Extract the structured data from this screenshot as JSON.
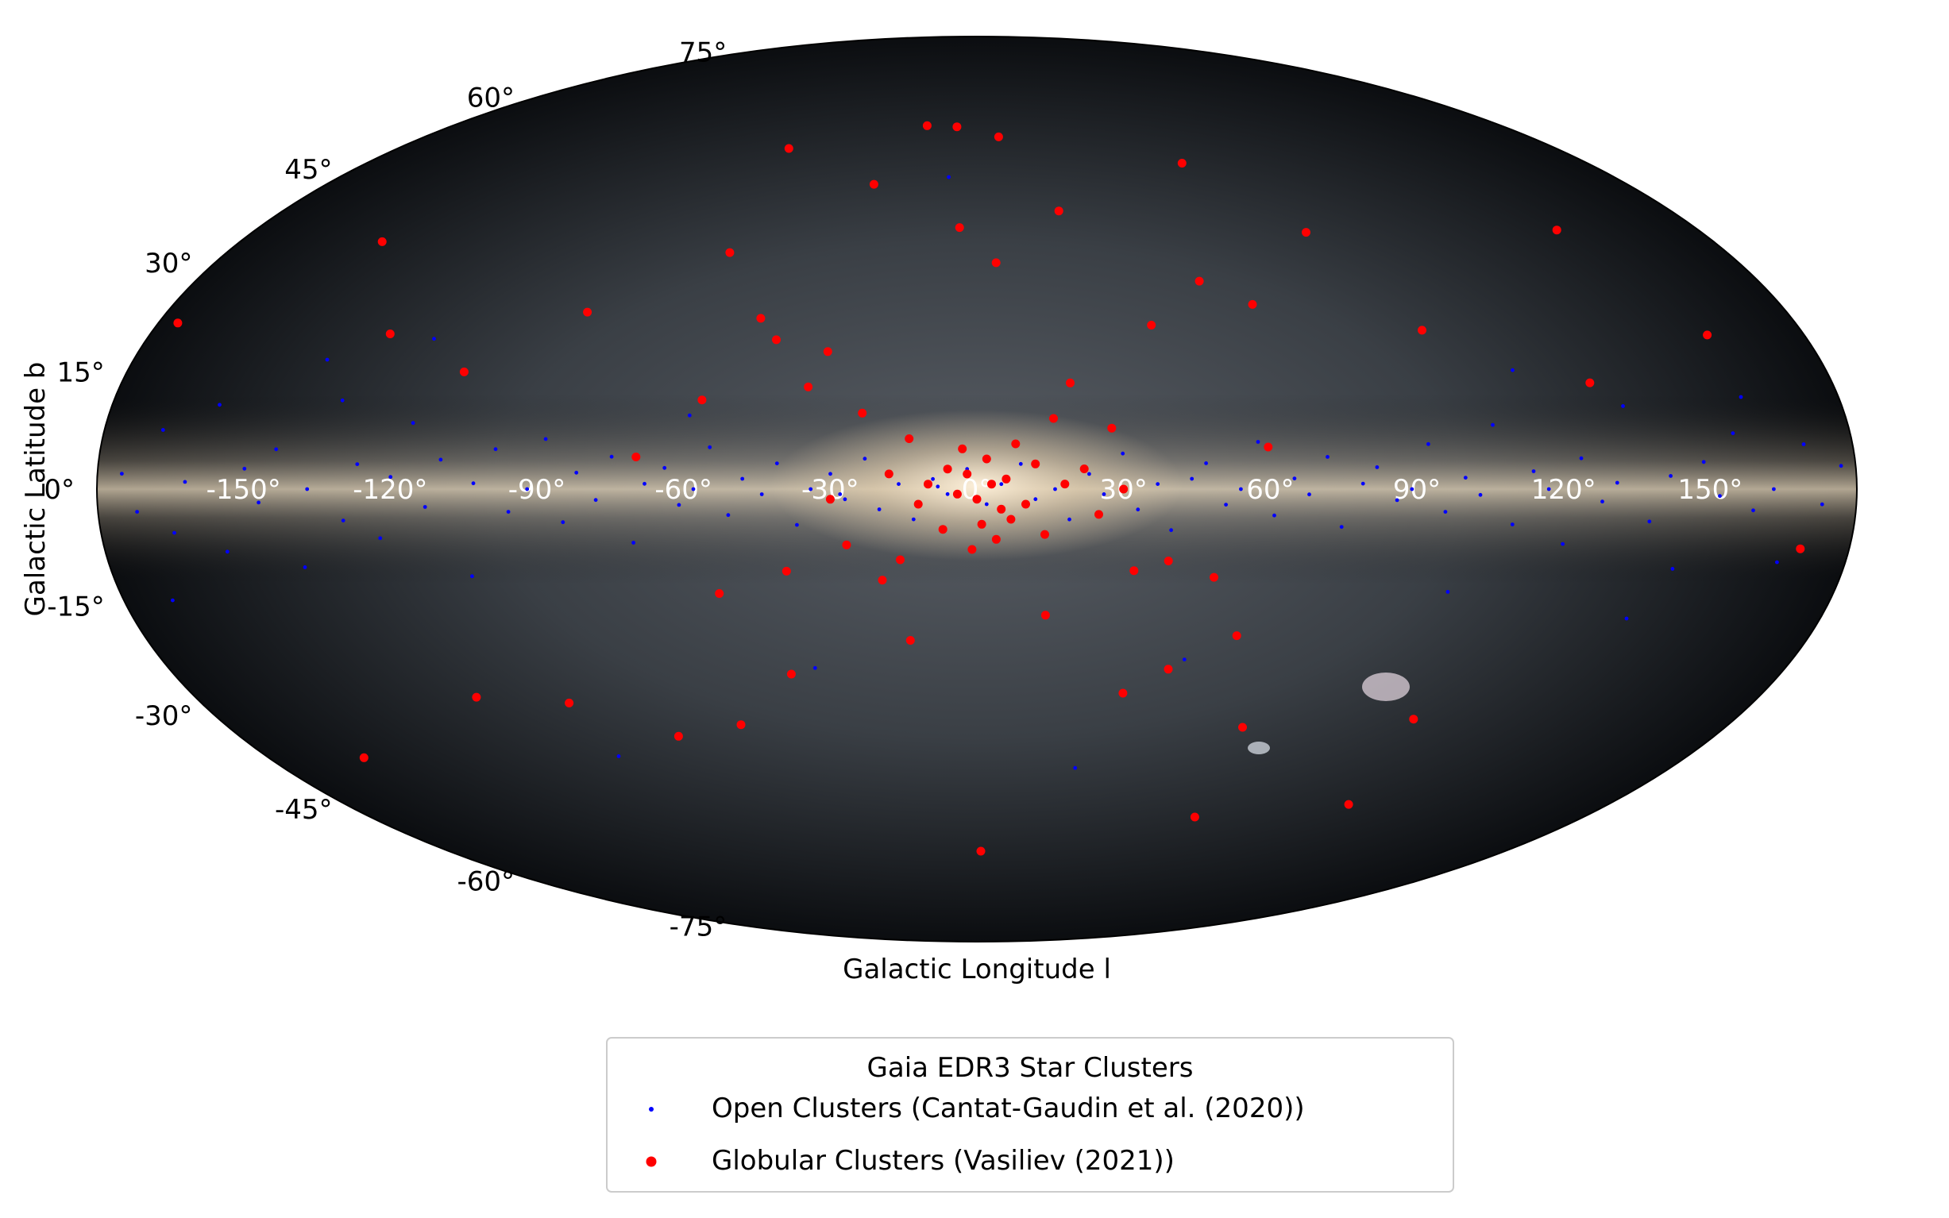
{
  "chart_data": {
    "type": "scatter",
    "projection": "aitoff",
    "xlabel": "Galactic Longitude l",
    "ylabel": "Galactic Latitude b",
    "xlim": [
      -180,
      180
    ],
    "ylim": [
      -90,
      90
    ],
    "x_ticks": [
      -150,
      -120,
      -90,
      -60,
      -30,
      0,
      30,
      60,
      90,
      120,
      150
    ],
    "y_ticks": [
      -75,
      -60,
      -45,
      -30,
      -15,
      0,
      15,
      30,
      45,
      60,
      75
    ],
    "x_tick_labels": [
      "-150°",
      "-120°",
      "-90°",
      "-60°",
      "-30°",
      "0°",
      "30°",
      "60°",
      "90°",
      "120°",
      "150°"
    ],
    "y_tick_labels": [
      "-75°",
      "-60°",
      "-45°",
      "-30°",
      "-15°",
      "0°",
      "15°",
      "30°",
      "45°",
      "60°",
      "75°"
    ],
    "legend": {
      "title": "Gaia EDR3 Star Clusters",
      "placement": "lower-center",
      "entries": [
        "Open Clusters (Cantat-Gaudin et al. (2020))",
        "Globular Clusters (Vasiliev (2021))"
      ]
    },
    "series": [
      {
        "name": "Open Clusters (Cantat-Gaudin et al. (2020))",
        "color": "#0000ff",
        "marker_size": "small",
        "points": [
          [
            -175,
            2
          ],
          [
            -172,
            -3
          ],
          [
            -168,
            8
          ],
          [
            -165,
            -6
          ],
          [
            -162,
            1
          ],
          [
            -158,
            12
          ],
          [
            -155,
            -9
          ],
          [
            -150,
            3
          ],
          [
            -147,
            -2
          ],
          [
            -144,
            6
          ],
          [
            -140,
            -12
          ],
          [
            -137,
            0
          ],
          [
            -133,
            14
          ],
          [
            -130,
            -5
          ],
          [
            -127,
            4
          ],
          [
            -123,
            -8
          ],
          [
            -120,
            2
          ],
          [
            -117,
            11
          ],
          [
            -113,
            -3
          ],
          [
            -110,
            5
          ],
          [
            -106,
            -15
          ],
          [
            -103,
            1
          ],
          [
            -99,
            7
          ],
          [
            -96,
            -4
          ],
          [
            -92,
            0
          ],
          [
            -89,
            9
          ],
          [
            -85,
            -6
          ],
          [
            -82,
            3
          ],
          [
            -78,
            -2
          ],
          [
            -75,
            6
          ],
          [
            -71,
            -10
          ],
          [
            -68,
            1
          ],
          [
            -64,
            4
          ],
          [
            -61,
            -3
          ],
          [
            -58,
            0
          ],
          [
            -55,
            8
          ],
          [
            -51,
            -5
          ],
          [
            -48,
            2
          ],
          [
            -44,
            -1
          ],
          [
            -41,
            5
          ],
          [
            -37,
            -7
          ],
          [
            -34,
            0
          ],
          [
            -30,
            3
          ],
          [
            -27,
            -2
          ],
          [
            -23,
            6
          ],
          [
            -20,
            -4
          ],
          [
            -16,
            1
          ],
          [
            -13,
            -6
          ],
          [
            -9,
            2
          ],
          [
            -6,
            -1
          ],
          [
            -2,
            4
          ],
          [
            2,
            -3
          ],
          [
            5,
            1
          ],
          [
            9,
            5
          ],
          [
            12,
            -2
          ],
          [
            16,
            0
          ],
          [
            19,
            -6
          ],
          [
            23,
            3
          ],
          [
            26,
            -1
          ],
          [
            30,
            7
          ],
          [
            33,
            -4
          ],
          [
            37,
            1
          ],
          [
            40,
            -8
          ],
          [
            44,
            2
          ],
          [
            47,
            5
          ],
          [
            51,
            -3
          ],
          [
            54,
            0
          ],
          [
            58,
            9
          ],
          [
            61,
            -5
          ],
          [
            65,
            2
          ],
          [
            68,
            -1
          ],
          [
            72,
            6
          ],
          [
            75,
            -7
          ],
          [
            79,
            1
          ],
          [
            82,
            4
          ],
          [
            86,
            -2
          ],
          [
            89,
            0
          ],
          [
            93,
            8
          ],
          [
            96,
            -4
          ],
          [
            100,
            2
          ],
          [
            103,
            -1
          ],
          [
            107,
            11
          ],
          [
            110,
            -6
          ],
          [
            114,
            3
          ],
          [
            117,
            0
          ],
          [
            121,
            -9
          ],
          [
            124,
            5
          ],
          [
            128,
            -2
          ],
          [
            131,
            1
          ],
          [
            135,
            13
          ],
          [
            138,
            -5
          ],
          [
            142,
            2
          ],
          [
            145,
            -12
          ],
          [
            149,
            4
          ],
          [
            152,
            -1
          ],
          [
            156,
            8
          ],
          [
            159,
            -3
          ],
          [
            163,
            0
          ],
          [
            166,
            -10
          ],
          [
            170,
            6
          ],
          [
            173,
            -2
          ],
          [
            177,
            3
          ],
          [
            -100,
            -48
          ],
          [
            -120,
            25
          ],
          [
            -60,
            14
          ],
          [
            -28,
            -1
          ],
          [
            -8,
            0.5
          ],
          [
            48,
            -33
          ],
          [
            115,
            20
          ],
          [
            -38,
            -35
          ],
          [
            160,
            13
          ],
          [
            140,
            -20
          ],
          [
            -140,
            20
          ],
          [
            100,
            -18
          ],
          [
            -170,
            -15
          ],
          [
            30,
            -55
          ],
          [
            -10,
            62
          ]
        ]
      },
      {
        "name": "Globular Clusters (Vasiliev (2021))",
        "color": "#ff0000",
        "marker_size": "large",
        "points": [
          [
            -2,
            3
          ],
          [
            0,
            -2
          ],
          [
            3,
            1
          ],
          [
            5,
            -4
          ],
          [
            -4,
            -1
          ],
          [
            2,
            6
          ],
          [
            6,
            2
          ],
          [
            -6,
            4
          ],
          [
            1,
            -7
          ],
          [
            4,
            -10
          ],
          [
            -1,
            -12
          ],
          [
            7,
            -6
          ],
          [
            -3,
            8
          ],
          [
            8,
            9
          ],
          [
            -7,
            -8
          ],
          [
            10,
            -3
          ],
          [
            -10,
            1
          ],
          [
            12,
            5
          ],
          [
            -12,
            -3
          ],
          [
            14,
            -9
          ],
          [
            -14,
            10
          ],
          [
            16,
            14
          ],
          [
            -16,
            -14
          ],
          [
            18,
            1
          ],
          [
            -18,
            3
          ],
          [
            20,
            21
          ],
          [
            -20,
            -18
          ],
          [
            22,
            4
          ],
          [
            -24,
            15
          ],
          [
            25,
            -5
          ],
          [
            -27,
            -11
          ],
          [
            28,
            12
          ],
          [
            -30,
            -2
          ],
          [
            30,
            0
          ],
          [
            -33,
            27
          ],
          [
            33,
            -16
          ],
          [
            -36,
            20
          ],
          [
            36,
            -40
          ],
          [
            -40,
            -16
          ],
          [
            40,
            32
          ],
          [
            -45,
            29
          ],
          [
            45,
            -35
          ],
          [
            -50,
            33
          ],
          [
            50,
            -17
          ],
          [
            -55,
            -20
          ],
          [
            55,
            40
          ],
          [
            -58,
            17
          ],
          [
            58,
            -28
          ],
          [
            -62,
            -45
          ],
          [
            60,
            8
          ],
          [
            -65,
            45
          ],
          [
            65,
            35
          ],
          [
            -70,
            6
          ],
          [
            70,
            -45
          ],
          [
            -75,
            65
          ],
          [
            75,
            62
          ],
          [
            -80,
            -46
          ],
          [
            80,
            -62
          ],
          [
            -90,
            32
          ],
          [
            90,
            47
          ],
          [
            -100,
            -38
          ],
          [
            100,
            28
          ],
          [
            -110,
            20
          ],
          [
            110,
            -40
          ],
          [
            -120,
            -35
          ],
          [
            120,
            -55
          ],
          [
            -130,
            25
          ],
          [
            130,
            17
          ],
          [
            -150,
            38
          ],
          [
            150,
            40
          ],
          [
            -160,
            -40
          ],
          [
            160,
            22
          ],
          [
            -10,
            72
          ],
          [
            10,
            70
          ],
          [
            5,
            45
          ],
          [
            -5,
            52
          ],
          [
            15,
            -25
          ],
          [
            -15,
            -30
          ],
          [
            25,
            55
          ],
          [
            -35,
            60
          ],
          [
            2,
            -72
          ],
          [
            -25,
            72
          ],
          [
            40,
            -14
          ],
          [
            -44,
            -36
          ],
          [
            170,
            -8
          ],
          [
            -176,
            22
          ]
        ]
      }
    ]
  }
}
